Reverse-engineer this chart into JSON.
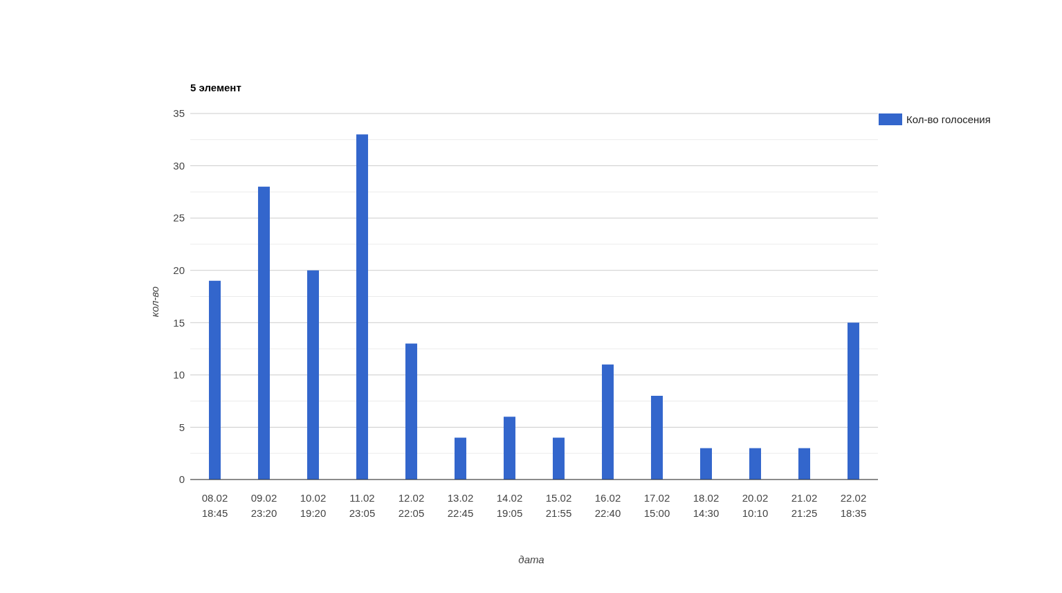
{
  "chart_data": {
    "type": "bar",
    "title": "5 элемент",
    "xlabel": "дата",
    "ylabel": "кол-во",
    "categories": [
      "08.02\n18:45",
      "09.02\n23:20",
      "10.02\n19:20",
      "11.02\n23:05",
      "12.02\n22:05",
      "13.02\n22:45",
      "14.02\n19:05",
      "15.02\n21:55",
      "16.02\n22:40",
      "17.02\n15:00",
      "18.02\n14:30",
      "20.02\n10:10",
      "21.02\n21:25",
      "22.02\n18:35"
    ],
    "series": [
      {
        "name": "Кол-во голосения",
        "color": "#3366cc",
        "values": [
          19,
          28,
          20,
          33,
          13,
          4,
          6,
          4,
          11,
          8,
          3,
          3,
          3,
          15
        ]
      }
    ],
    "ylim": [
      0,
      35
    ],
    "yticks": [
      0,
      {
        "value": 2.5,
        "label": null
      },
      5,
      {
        "value": 7.5,
        "label": null
      },
      10,
      {
        "value": 12.5,
        "label": null
      },
      15,
      {
        "value": 17.5,
        "label": null
      },
      20,
      {
        "value": 22.5,
        "label": null
      },
      25,
      {
        "value": 27.5,
        "label": null
      },
      30,
      {
        "value": 32.5,
        "label": null
      },
      35
    ],
    "grid": "y",
    "legend": "top right"
  }
}
